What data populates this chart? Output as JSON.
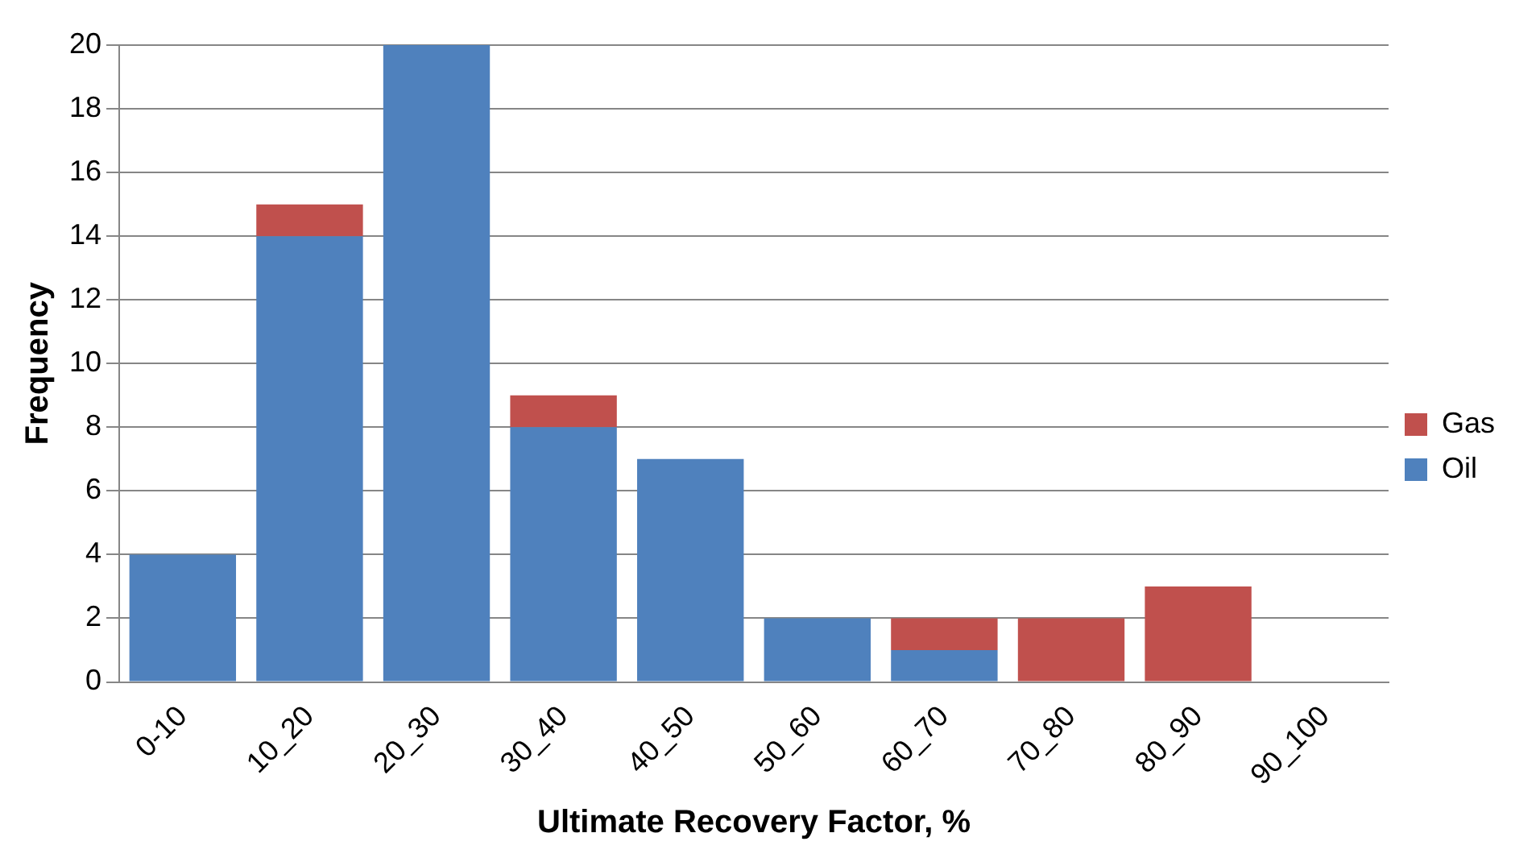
{
  "chart_data": {
    "type": "bar",
    "xlabel": "Ultimate Recovery Factor, %",
    "ylabel": "Frequency",
    "categories": [
      "0-10",
      "10_20",
      "20_30",
      "30_40",
      "40_50",
      "50_60",
      "60_70",
      "70_80",
      "80_90",
      "90_100"
    ],
    "series": [
      {
        "name": "Oil",
        "color": "#4f81bd",
        "values": [
          4,
          14,
          20,
          8,
          7,
          2,
          1,
          0,
          0,
          0
        ]
      },
      {
        "name": "Gas",
        "color": "#c0504d",
        "values": [
          0,
          1,
          0,
          1,
          0,
          0,
          1,
          2,
          3,
          0
        ]
      }
    ],
    "stacked": true,
    "ylim": [
      0,
      20
    ],
    "yticks": [
      0,
      2,
      4,
      6,
      8,
      10,
      12,
      14,
      16,
      18,
      20
    ],
    "grid": "y",
    "legend": "right"
  }
}
